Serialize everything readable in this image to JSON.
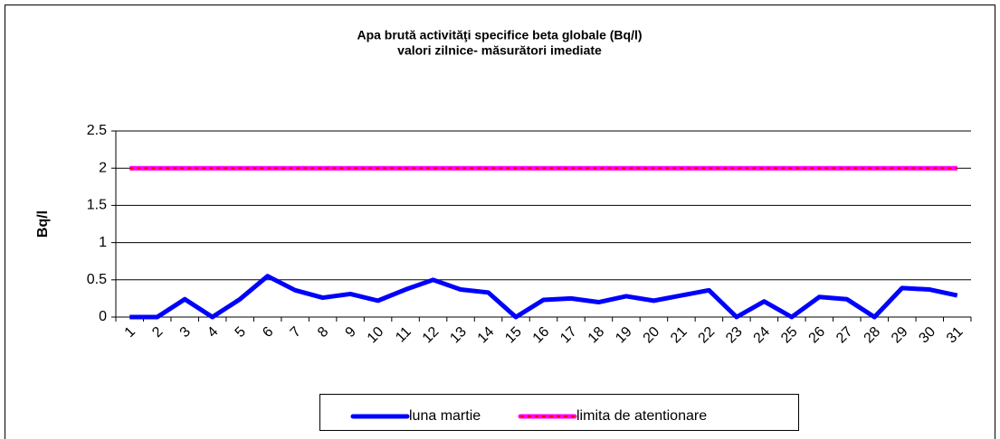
{
  "chart_data": {
    "type": "line",
    "title": "Apa brută activităţi specifice beta globale (Bq/l)",
    "subtitle": "valori zilnice- măsurători imediate",
    "y_label": "Bq/l",
    "categories": [
      "1",
      "2",
      "3",
      "4",
      "5",
      "6",
      "7",
      "8",
      "9",
      "10",
      "11",
      "12",
      "13",
      "14",
      "15",
      "16",
      "17",
      "18",
      "19",
      "20",
      "21",
      "22",
      "23",
      "24",
      "25",
      "26",
      "27",
      "28",
      "29",
      "30",
      "31"
    ],
    "series": [
      {
        "name": "luna martie",
        "color": "#0000ff",
        "values": [
          0,
          0,
          0.24,
          0,
          0.24,
          0.55,
          0.36,
          0.26,
          0.31,
          0.22,
          0.37,
          0.5,
          0.37,
          0.33,
          0,
          0.23,
          0.25,
          0.2,
          0.28,
          0.22,
          0.29,
          0.36,
          0,
          0.21,
          0,
          0.27,
          0.24,
          0,
          0.39,
          0.37,
          0.29
        ]
      },
      {
        "name": "limita de atentionare",
        "color": "#ff00ff",
        "dash_color": "#ff0000",
        "values": [
          2,
          2,
          2,
          2,
          2,
          2,
          2,
          2,
          2,
          2,
          2,
          2,
          2,
          2,
          2,
          2,
          2,
          2,
          2,
          2,
          2,
          2,
          2,
          2,
          2,
          2,
          2,
          2,
          2,
          2,
          2
        ]
      }
    ],
    "ylim": [
      0,
      2.5
    ],
    "yticks": [
      0,
      0.5,
      1,
      1.5,
      2,
      2.5
    ],
    "grid": true,
    "legend": "bottom"
  }
}
